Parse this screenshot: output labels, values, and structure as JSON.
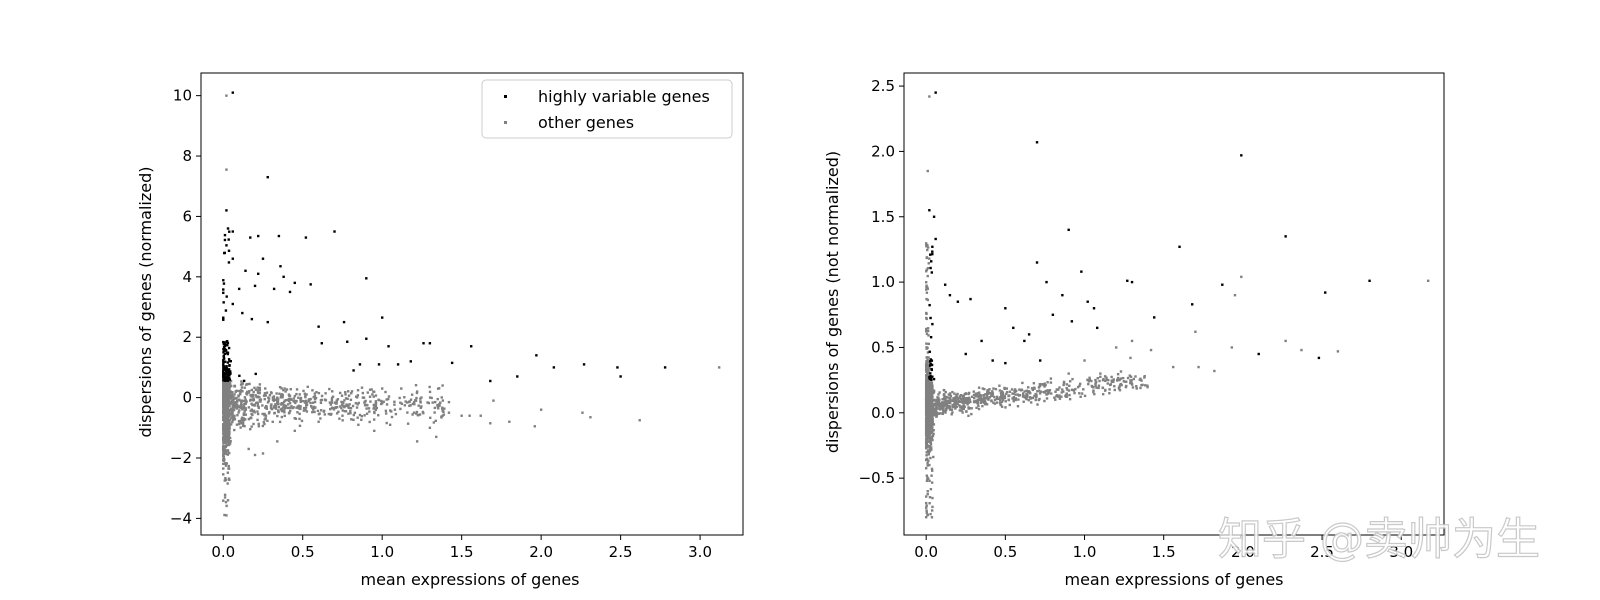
{
  "chart_data": [
    {
      "type": "scatter",
      "title": "",
      "xlabel": "mean expressions of genes",
      "ylabel": "dispersions of genes (normalized)",
      "xlim": [
        -0.14,
        3.27
      ],
      "ylim": [
        -4.55,
        10.75
      ],
      "xticks": [
        0.0,
        0.5,
        1.0,
        1.5,
        2.0,
        2.5,
        3.0
      ],
      "xtick_labels": [
        "0.0",
        "0.5",
        "1.0",
        "1.5",
        "2.0",
        "2.5",
        "3.0"
      ],
      "yticks": [
        -4,
        -2,
        0,
        2,
        4,
        6,
        8,
        10
      ],
      "ytick_labels": [
        "−4",
        "−2",
        "0",
        "2",
        "4",
        "6",
        "8",
        "10"
      ],
      "legend": {
        "position": "top-right",
        "entries": [
          {
            "label": "highly variable genes",
            "color": "#000000"
          },
          {
            "label": "other genes",
            "color": "#808080"
          }
        ]
      },
      "series": [
        {
          "name": "highly variable genes",
          "color": "#000000",
          "points": [
            [
              0.06,
              10.1
            ],
            [
              0.02,
              6.2
            ],
            [
              0.28,
              7.3
            ],
            [
              0.03,
              5.6
            ],
            [
              0.06,
              5.5
            ],
            [
              0.17,
              5.3
            ],
            [
              0.22,
              5.35
            ],
            [
              0.35,
              5.35
            ],
            [
              0.52,
              5.3
            ],
            [
              0.7,
              5.5
            ],
            [
              0.06,
              4.6
            ],
            [
              0.14,
              4.2
            ],
            [
              0.22,
              4.1
            ],
            [
              0.25,
              4.6
            ],
            [
              0.36,
              4.35
            ],
            [
              0.38,
              4.0
            ],
            [
              0.45,
              3.8
            ],
            [
              0.55,
              3.75
            ],
            [
              0.9,
              3.95
            ],
            [
              0.1,
              3.6
            ],
            [
              0.2,
              3.7
            ],
            [
              0.32,
              3.6
            ],
            [
              0.42,
              3.5
            ],
            [
              0.06,
              3.1
            ],
            [
              0.12,
              2.8
            ],
            [
              0.18,
              2.6
            ],
            [
              0.28,
              2.5
            ],
            [
              0.6,
              2.35
            ],
            [
              0.76,
              2.5
            ],
            [
              1.0,
              2.65
            ],
            [
              0.62,
              1.8
            ],
            [
              0.78,
              1.85
            ],
            [
              0.9,
              1.95
            ],
            [
              1.04,
              1.7
            ],
            [
              1.26,
              1.8
            ],
            [
              1.3,
              1.8
            ],
            [
              1.56,
              1.7
            ],
            [
              1.44,
              1.15
            ],
            [
              0.98,
              1.1
            ],
            [
              1.1,
              1.1
            ],
            [
              1.18,
              1.2
            ],
            [
              0.82,
              0.9
            ],
            [
              0.86,
              1.1
            ],
            [
              1.68,
              0.55
            ],
            [
              1.85,
              0.7
            ],
            [
              1.97,
              1.4
            ],
            [
              2.08,
              1.0
            ],
            [
              2.27,
              1.1
            ],
            [
              2.48,
              1.0
            ],
            [
              2.5,
              0.7
            ],
            [
              2.78,
              1.0
            ]
          ]
        },
        {
          "name": "other genes",
          "color": "#808080",
          "points": [
            [
              0.02,
              10.0
            ],
            [
              0.02,
              7.55
            ],
            [
              3.12,
              1.0
            ],
            [
              0.02,
              -3.9
            ],
            [
              0.03,
              -3.4
            ],
            [
              0.16,
              -1.7
            ],
            [
              0.2,
              -1.9
            ],
            [
              0.25,
              -1.85
            ],
            [
              0.34,
              -1.45
            ],
            [
              0.45,
              -1.1
            ],
            [
              0.6,
              -0.8
            ],
            [
              0.75,
              -0.6
            ],
            [
              0.85,
              -0.9
            ],
            [
              0.95,
              -1.1
            ],
            [
              1.05,
              -0.9
            ],
            [
              1.08,
              -0.4
            ],
            [
              1.2,
              -0.5
            ],
            [
              1.22,
              -1.45
            ],
            [
              1.3,
              -1.0
            ],
            [
              1.34,
              -1.3
            ],
            [
              1.38,
              -0.6
            ],
            [
              1.42,
              -0.5
            ],
            [
              1.5,
              -0.6
            ],
            [
              1.55,
              -0.6
            ],
            [
              1.62,
              -0.6
            ],
            [
              1.68,
              -0.85
            ],
            [
              1.8,
              -0.8
            ],
            [
              1.96,
              -0.95
            ],
            [
              2.0,
              -0.4
            ],
            [
              2.26,
              -0.5
            ],
            [
              2.31,
              -0.65
            ],
            [
              2.62,
              -0.75
            ],
            [
              1.12,
              0.3
            ],
            [
              1.0,
              0.3
            ],
            [
              1.22,
              0.2
            ],
            [
              1.38,
              0.4
            ],
            [
              1.42,
              -0.15
            ],
            [
              1.7,
              -0.1
            ]
          ]
        }
      ]
    },
    {
      "type": "scatter",
      "title": "",
      "xlabel": "mean expressions of genes",
      "ylabel": "dispersions of genes (not normalized)",
      "xlim": [
        -0.14,
        3.27
      ],
      "ylim": [
        -0.935,
        2.6
      ],
      "xticks": [
        0.0,
        0.5,
        1.0,
        1.5,
        2.0,
        2.5,
        3.0
      ],
      "xtick_labels": [
        "0.0",
        "0.5",
        "1.0",
        "1.5",
        "2.0",
        "2.5",
        "3.0"
      ],
      "yticks": [
        -0.5,
        0.0,
        0.5,
        1.0,
        1.5,
        2.0,
        2.5
      ],
      "ytick_labels": [
        "−0.5",
        "0.0",
        "0.5",
        "1.0",
        "1.5",
        "2.0",
        "2.5"
      ],
      "series": [
        {
          "name": "highly variable genes",
          "color": "#000000",
          "points": [
            [
              0.06,
              2.45
            ],
            [
              0.7,
              2.07
            ],
            [
              1.99,
              1.97
            ],
            [
              0.02,
              1.55
            ],
            [
              0.05,
              1.5
            ],
            [
              0.06,
              1.33
            ],
            [
              0.9,
              1.4
            ],
            [
              1.6,
              1.27
            ],
            [
              2.27,
              1.35
            ],
            [
              0.7,
              1.15
            ],
            [
              0.98,
              1.08
            ],
            [
              1.27,
              1.01
            ],
            [
              1.3,
              1.0
            ],
            [
              1.87,
              0.98
            ],
            [
              2.8,
              1.01
            ],
            [
              0.12,
              0.98
            ],
            [
              0.15,
              0.9
            ],
            [
              0.2,
              0.85
            ],
            [
              0.28,
              0.87
            ],
            [
              0.76,
              1.0
            ],
            [
              0.86,
              0.9
            ],
            [
              1.02,
              0.85
            ],
            [
              1.06,
              0.8
            ],
            [
              2.52,
              0.92
            ],
            [
              1.68,
              0.83
            ],
            [
              0.5,
              0.8
            ],
            [
              0.55,
              0.65
            ],
            [
              0.65,
              0.6
            ],
            [
              0.8,
              0.75
            ],
            [
              0.92,
              0.7
            ],
            [
              1.08,
              0.65
            ],
            [
              1.44,
              0.73
            ],
            [
              0.35,
              0.55
            ],
            [
              0.62,
              0.55
            ],
            [
              2.1,
              0.45
            ],
            [
              2.48,
              0.42
            ],
            [
              0.42,
              0.4
            ],
            [
              0.5,
              0.38
            ],
            [
              0.72,
              0.4
            ],
            [
              0.25,
              0.45
            ]
          ]
        },
        {
          "name": "other genes",
          "color": "#808080",
          "points": [
            [
              0.02,
              2.42
            ],
            [
              0.01,
              1.85
            ],
            [
              3.17,
              1.01
            ],
            [
              1.99,
              1.04
            ],
            [
              1.95,
              0.9
            ],
            [
              2.27,
              0.55
            ],
            [
              2.37,
              0.48
            ],
            [
              2.6,
              0.47
            ],
            [
              1.7,
              0.62
            ],
            [
              1.72,
              0.35
            ],
            [
              1.82,
              0.32
            ],
            [
              1.93,
              0.5
            ],
            [
              1.29,
              0.42
            ],
            [
              1.38,
              0.28
            ],
            [
              1.56,
              0.35
            ],
            [
              1.42,
              0.48
            ],
            [
              1.2,
              0.5
            ],
            [
              1.3,
              0.55
            ],
            [
              1.15,
              0.25
            ],
            [
              1.1,
              0.3
            ],
            [
              1.05,
              0.2
            ],
            [
              1.0,
              0.4
            ],
            [
              0.9,
              0.3
            ],
            [
              0.01,
              -0.78
            ],
            [
              0.01,
              -0.6
            ],
            [
              0.02,
              -0.4
            ]
          ]
        }
      ]
    }
  ],
  "watermark": "知乎 @卖帅为生"
}
